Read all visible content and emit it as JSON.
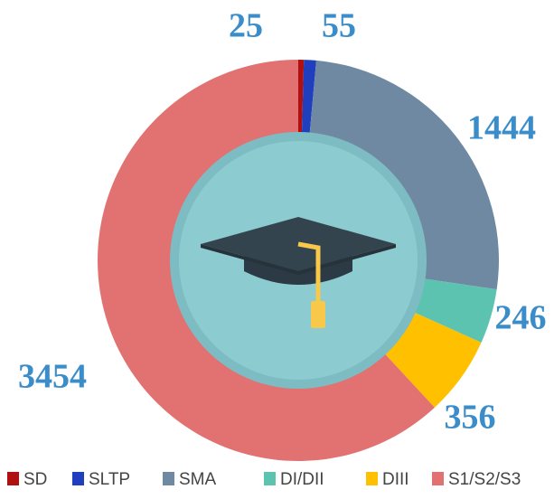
{
  "chart_data": {
    "type": "pie",
    "categories": [
      "SD",
      "SLTP",
      "SMA",
      "DI/DII",
      "DIII",
      "S1/S2/S3"
    ],
    "values": [
      25,
      55,
      1444,
      246,
      356,
      3454
    ],
    "colors": [
      "#b01010",
      "#1f3fbf",
      "#7089a2",
      "#5cc3b0",
      "#ffc000",
      "#e27272"
    ],
    "legend": "bottom"
  }
}
